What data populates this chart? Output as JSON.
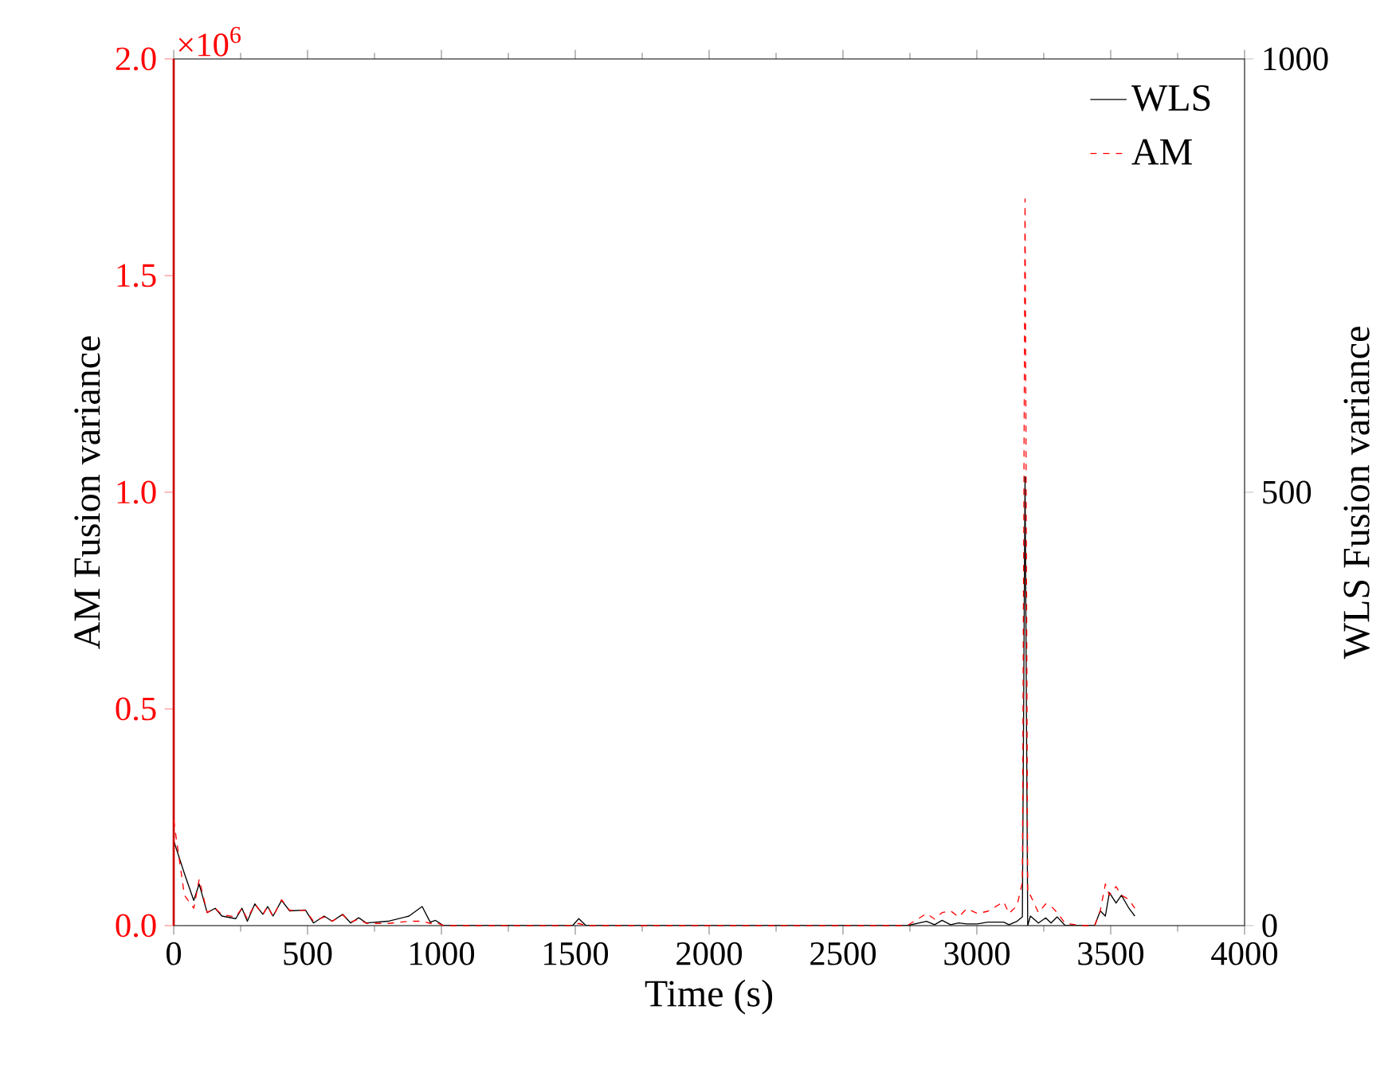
{
  "chart_data": {
    "type": "line",
    "xlabel": "Time (s)",
    "ylabel": "AM  Fusion variance",
    "y2label": "WLS  Fusion variance",
    "annotations": [
      "×10$^{6}$"
    ],
    "x": [
      0,
      40,
      75,
      95,
      125,
      155,
      180,
      232,
      255,
      275,
      303,
      333,
      351,
      371,
      403,
      433,
      492,
      522,
      562,
      592,
      631,
      661,
      691,
      720,
      800,
      879,
      928,
      958,
      978,
      1008,
      1490,
      1513,
      1540,
      2740,
      2812,
      2842,
      2870,
      2902,
      2932,
      2962,
      3002,
      3041,
      3100,
      3120,
      3150,
      3170,
      3180,
      3190,
      3200,
      3230,
      3257,
      3277,
      3300,
      3330,
      3400,
      3440,
      3461,
      3480,
      3495,
      3520,
      3540,
      3568,
      3590
    ],
    "series": [
      {
        "name": "WLS",
        "color": "#000000",
        "axis": "y2",
        "line_style": "solid",
        "values": [
          98,
          60,
          29,
          48,
          15,
          20,
          11,
          8,
          20,
          5,
          25,
          13,
          22,
          11,
          29,
          17,
          18,
          3,
          11,
          5,
          13,
          3,
          9,
          3,
          5,
          11,
          22,
          4,
          6,
          0,
          0,
          8,
          0,
          0,
          5,
          1,
          6,
          1,
          3,
          2,
          2,
          4,
          4,
          1,
          5,
          10,
          518,
          0,
          11,
          3,
          9,
          3,
          10,
          0,
          0,
          0,
          17,
          11,
          38,
          26,
          35,
          20,
          11
        ]
      },
      {
        "name": "AM",
        "color": "#ff0000",
        "line_style": "dashed",
        "values": [
          0.243,
          0.07,
          0.04,
          0.107,
          0.03,
          0.04,
          0.025,
          0.02,
          0.04,
          0.015,
          0.05,
          0.025,
          0.045,
          0.02,
          0.06,
          0.035,
          0.035,
          0.01,
          0.02,
          0.01,
          0.025,
          0.008,
          0.015,
          0.005,
          0.005,
          0.01,
          0.01,
          0.005,
          0.008,
          0,
          0,
          0.005,
          0,
          0,
          0.028,
          0.015,
          0.03,
          0.034,
          0.02,
          0.039,
          0.028,
          0.033,
          0.055,
          0.028,
          0.046,
          0.1,
          1.677,
          0.07,
          0.07,
          0.03,
          0.05,
          0.045,
          0.03,
          0.005,
          0,
          0,
          0.034,
          0.096,
          0.07,
          0.09,
          0.07,
          0.06,
          0.04
        ]
      }
    ],
    "xlim": [
      0,
      4000
    ],
    "xticks": [
      0,
      500,
      1000,
      1500,
      2000,
      2500,
      3000,
      3500,
      4000
    ],
    "ylim": [
      0,
      2.0
    ],
    "yticks": [
      {
        "value": 0,
        "label": "0.0"
      },
      0.5,
      {
        "value": 1,
        "label": "1.0"
      },
      1.5,
      {
        "value": 2,
        "label": "2.0"
      }
    ],
    "y2lim": [
      0,
      1000
    ],
    "y2ticks": [
      0,
      500,
      1000
    ],
    "legend": "top right",
    "marker": "none"
  }
}
